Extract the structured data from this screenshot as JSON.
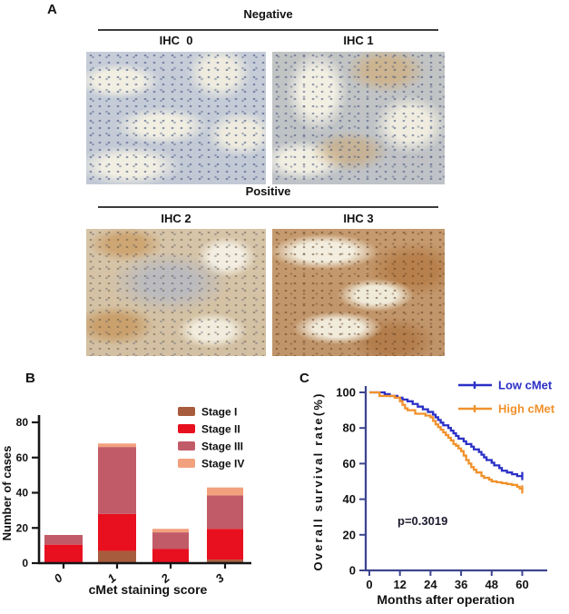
{
  "panel_a": {
    "label": "A",
    "groups": [
      {
        "title": "Negative",
        "images": [
          {
            "label": "IHC  0"
          },
          {
            "label": "IHC 1"
          }
        ]
      },
      {
        "title": "Positive",
        "images": [
          {
            "label": "IHC 2"
          },
          {
            "label": "IHC 3"
          }
        ]
      }
    ]
  },
  "panel_b": {
    "label": "B"
  },
  "panel_c": {
    "label": "C"
  },
  "chart_data": [
    {
      "id": "stage-by-cmet-score",
      "type": "bar",
      "stacked": true,
      "title": "",
      "xlabel": "cMet staining score",
      "ylabel": "Number of cases",
      "categories": [
        "0",
        "1",
        "2",
        "3"
      ],
      "series": [
        {
          "name": "Stage I",
          "color": "#A85C3E",
          "values": [
            0,
            7,
            0,
            2
          ]
        },
        {
          "name": "Stage II",
          "color": "#E8101E",
          "values": [
            10.5,
            21,
            8,
            17.5
          ]
        },
        {
          "name": "Stage III",
          "color": "#C25B68",
          "values": [
            5.5,
            38,
            9.5,
            19
          ]
        },
        {
          "name": "Stage IV",
          "color": "#F2A17E",
          "values": [
            0,
            2,
            2,
            4.5
          ]
        }
      ],
      "ylim": [
        0,
        80
      ],
      "yticks": [
        0,
        20,
        40,
        60,
        80
      ],
      "grid": false,
      "legend_position": "top-right",
      "axis_color": "#161616"
    },
    {
      "id": "overall-survival-km",
      "type": "line",
      "step": true,
      "title": "",
      "xlabel": "Months after operation",
      "ylabel": "Overall survival rate(%)",
      "xlim": [
        0,
        66
      ],
      "ylim": [
        0,
        100
      ],
      "xticks": [
        0,
        12,
        24,
        36,
        48,
        60
      ],
      "yticks": [
        0,
        20,
        40,
        60,
        80,
        100
      ],
      "grid": false,
      "annotation": "p=0.3019",
      "axis_color": "#3D4590",
      "legend_position": "top-right",
      "series": [
        {
          "name": "Low cMet",
          "color": "#2B30C6",
          "points": [
            [
              0,
              100
            ],
            [
              6,
              99
            ],
            [
              8,
              98
            ],
            [
              11,
              97
            ],
            [
              13,
              96
            ],
            [
              15,
              95
            ],
            [
              17,
              93.5
            ],
            [
              19,
              92
            ],
            [
              21,
              90.5
            ],
            [
              23,
              89
            ],
            [
              25,
              87.5
            ],
            [
              26,
              86
            ],
            [
              27,
              84.5
            ],
            [
              28,
              83
            ],
            [
              29,
              81.5
            ],
            [
              31,
              80
            ],
            [
              32,
              78.5
            ],
            [
              33,
              77
            ],
            [
              34,
              75.5
            ],
            [
              35,
              74
            ],
            [
              37,
              72.5
            ],
            [
              38,
              71
            ],
            [
              40,
              69.5
            ],
            [
              41,
              68
            ],
            [
              43,
              66.5
            ],
            [
              44,
              65
            ],
            [
              45,
              63.5
            ],
            [
              46,
              62
            ],
            [
              48,
              60.5
            ],
            [
              49,
              59
            ],
            [
              51,
              57.5
            ],
            [
              52,
              56
            ],
            [
              54,
              55
            ],
            [
              56,
              54
            ],
            [
              58,
              53
            ],
            [
              60,
              53
            ]
          ]
        },
        {
          "name": "High cMet",
          "color": "#F0912B",
          "points": [
            [
              0,
              100
            ],
            [
              4,
              98
            ],
            [
              10,
              97
            ],
            [
              12,
              95
            ],
            [
              13,
              93
            ],
            [
              14,
              91
            ],
            [
              15,
              90
            ],
            [
              18,
              88
            ],
            [
              22,
              87
            ],
            [
              24,
              86
            ],
            [
              25,
              84
            ],
            [
              26,
              82
            ],
            [
              27,
              80.5
            ],
            [
              28,
              79
            ],
            [
              29,
              77.5
            ],
            [
              30,
              76
            ],
            [
              31,
              74.5
            ],
            [
              32,
              73
            ],
            [
              33,
              71
            ],
            [
              34,
              70
            ],
            [
              35,
              68.5
            ],
            [
              36,
              67
            ],
            [
              37,
              64.5
            ],
            [
              38,
              62
            ],
            [
              39,
              60
            ],
            [
              40,
              58
            ],
            [
              41,
              56.5
            ],
            [
              42,
              55
            ],
            [
              44,
              53
            ],
            [
              45,
              52
            ],
            [
              47,
              51
            ],
            [
              48,
              50
            ],
            [
              50,
              49.5
            ],
            [
              52,
              49
            ],
            [
              54,
              48.5
            ],
            [
              56,
              48
            ],
            [
              58,
              47
            ],
            [
              59,
              46
            ],
            [
              60,
              45.5
            ]
          ]
        }
      ]
    }
  ]
}
